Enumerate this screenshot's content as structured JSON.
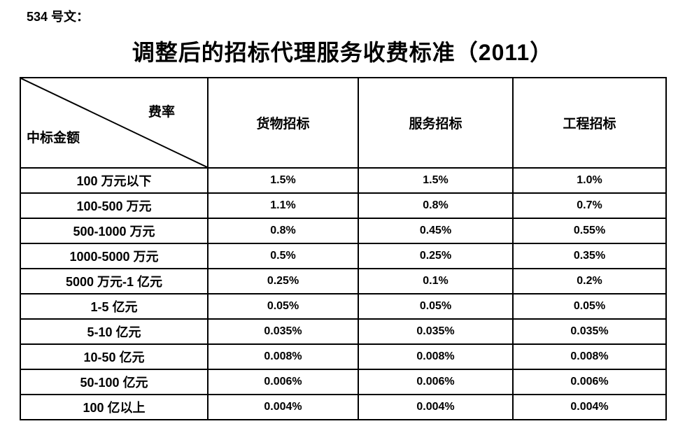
{
  "doc_label": "534 号文：",
  "title": "调整后的招标代理服务收费标准（2011）",
  "table": {
    "corner": {
      "fee_rate": "费率",
      "bid_amount": "中标金额"
    },
    "columns": [
      "货物招标",
      "服务招标",
      "工程招标"
    ],
    "rows": [
      {
        "label": "100 万元以下",
        "values": [
          "1.5%",
          "1.5%",
          "1.0%"
        ]
      },
      {
        "label": "100-500 万元",
        "values": [
          "1.1%",
          "0.8%",
          "0.7%"
        ]
      },
      {
        "label": "500-1000 万元",
        "values": [
          "0.8%",
          "0.45%",
          "0.55%"
        ]
      },
      {
        "label": "1000-5000 万元",
        "values": [
          "0.5%",
          "0.25%",
          "0.35%"
        ]
      },
      {
        "label": "5000 万元-1 亿元",
        "values": [
          "0.25%",
          "0.1%",
          "0.2%"
        ]
      },
      {
        "label": "1-5 亿元",
        "values": [
          "0.05%",
          "0.05%",
          "0.05%"
        ]
      },
      {
        "label": "5-10 亿元",
        "values": [
          "0.035%",
          "0.035%",
          "0.035%"
        ]
      },
      {
        "label": "10-50 亿元",
        "values": [
          "0.008%",
          "0.008%",
          "0.008%"
        ]
      },
      {
        "label": "50-100 亿元",
        "values": [
          "0.006%",
          "0.006%",
          "0.006%"
        ]
      },
      {
        "label": "100 亿以上",
        "values": [
          "0.004%",
          "0.004%",
          "0.004%"
        ]
      }
    ]
  }
}
